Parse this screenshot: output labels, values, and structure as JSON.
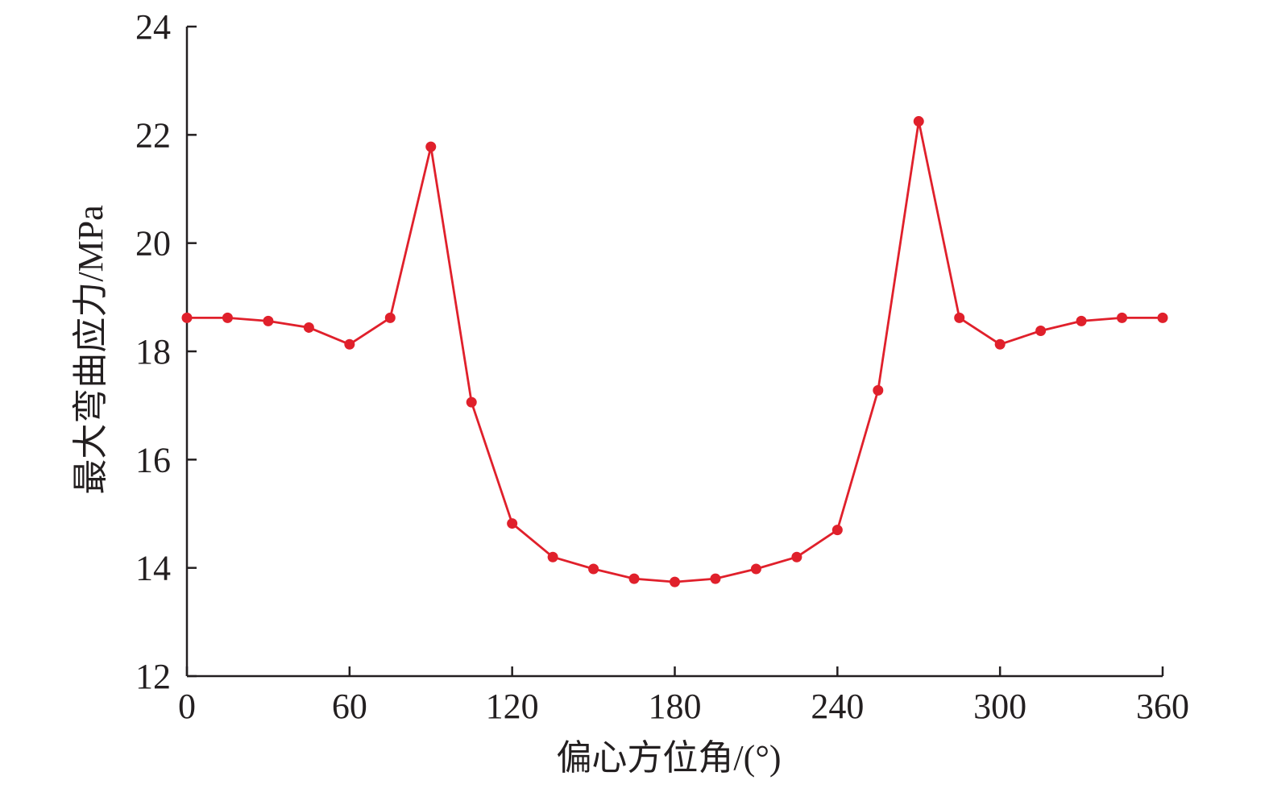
{
  "chart_data": {
    "type": "line",
    "title": "",
    "xlabel": "偏心方位角/(°)",
    "ylabel": "最大弯曲应力/MPa",
    "xlim": [
      0,
      360
    ],
    "ylim": [
      12,
      24
    ],
    "xticks": [
      0,
      60,
      120,
      180,
      240,
      300,
      360
    ],
    "yticks": [
      12,
      14,
      16,
      18,
      20,
      22,
      24
    ],
    "grid": false,
    "legend": "none",
    "series": [
      {
        "color": "#e0202b",
        "marker": "circle",
        "x": [
          0,
          15,
          30,
          45,
          60,
          75,
          90,
          105,
          120,
          135,
          150,
          165,
          180,
          195,
          210,
          225,
          240,
          255,
          270,
          285,
          300,
          315,
          330,
          345,
          360
        ],
        "y": [
          18.62,
          18.62,
          18.56,
          18.44,
          18.13,
          18.62,
          21.78,
          17.06,
          14.82,
          14.2,
          13.98,
          13.8,
          13.74,
          13.8,
          13.98,
          14.2,
          14.7,
          17.28,
          22.25,
          18.62,
          18.13,
          18.38,
          18.56,
          18.62,
          18.62
        ]
      }
    ]
  }
}
